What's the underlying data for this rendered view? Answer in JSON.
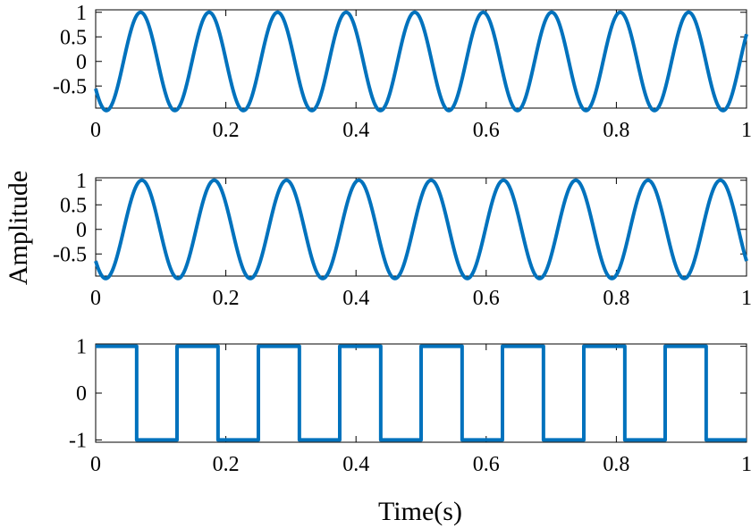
{
  "colors": {
    "line": "#0072BD",
    "axis": "#000000",
    "background": "#FFFFFF"
  },
  "figure": {
    "ylabel": "Amplitude",
    "xlabel": "Time(s)"
  },
  "chart_data": [
    {
      "type": "line",
      "title": "",
      "xlim": [
        0,
        1
      ],
      "ylim": [
        -0.95,
        1.05
      ],
      "xticks": [
        0,
        0.2,
        0.4,
        0.6,
        0.8,
        1
      ],
      "xticklabels": [
        "0",
        "0.2",
        "0.4",
        "0.6",
        "0.8",
        "1"
      ],
      "yticks": [
        1,
        0.5,
        0,
        -0.5
      ],
      "yticklabels": [
        "1",
        "0.5",
        "0",
        "-0.5"
      ],
      "series": [
        {
          "kind": "sine",
          "amplitude": 1,
          "frequency_hz": 9.5,
          "phase_rad": 3.73
        }
      ],
      "grid": false
    },
    {
      "type": "line",
      "title": "",
      "xlim": [
        0,
        1
      ],
      "ylim": [
        -0.95,
        1.05
      ],
      "xticks": [
        0,
        0.2,
        0.4,
        0.6,
        0.8,
        1
      ],
      "xticklabels": [
        "0",
        "0.2",
        "0.4",
        "0.6",
        "0.8",
        "1"
      ],
      "yticks": [
        1,
        0.5,
        0,
        -0.5
      ],
      "yticklabels": [
        "1",
        "0.5",
        "0",
        "-0.5"
      ],
      "series": [
        {
          "kind": "sine",
          "amplitude": 1,
          "frequency_hz": 9.0,
          "phase_rad": 3.84
        }
      ],
      "grid": false
    },
    {
      "type": "line",
      "title": "",
      "xlim": [
        0,
        1
      ],
      "ylim": [
        -1.05,
        1.05
      ],
      "xticks": [
        0,
        0.2,
        0.4,
        0.6,
        0.8,
        1
      ],
      "xticklabels": [
        "0",
        "0.2",
        "0.4",
        "0.6",
        "0.8",
        "1"
      ],
      "yticks": [
        1,
        0,
        -1
      ],
      "yticklabels": [
        "1",
        "0",
        "-1"
      ],
      "series": [
        {
          "kind": "square",
          "levels": [
            1,
            -1
          ],
          "start_level": 1,
          "transitions": [
            0.063,
            0.125,
            0.188,
            0.25,
            0.313,
            0.375,
            0.438,
            0.5,
            0.563,
            0.625,
            0.688,
            0.75,
            0.813,
            0.875,
            0.938
          ]
        }
      ],
      "grid": false
    }
  ]
}
